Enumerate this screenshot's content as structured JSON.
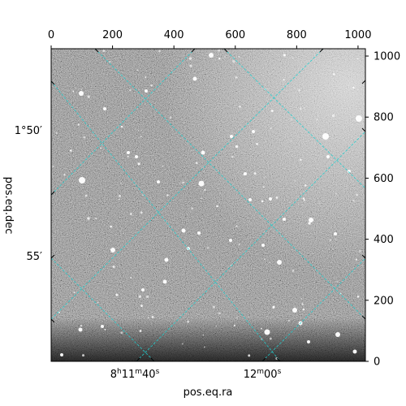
{
  "plot": {
    "xlabel": "pos.eq.ra",
    "ylabel": "pos.eq.dec",
    "top_ticks": [
      "0",
      "200",
      "400",
      "600",
      "800",
      "1000"
    ],
    "right_ticks": [
      "0",
      "200",
      "400",
      "600",
      "800",
      "1000"
    ],
    "ra_ticks": [
      {
        "h": "8",
        "m": "11",
        "s": "40"
      },
      {
        "m": "12",
        "s": "00"
      }
    ],
    "dec_ticks": [
      "1°50′",
      "55′"
    ],
    "grid_color": "#1fd0d0",
    "background": "#ffffff"
  },
  "chart_data": {
    "type": "image",
    "title": "",
    "xlabel": "pos.eq.ra",
    "ylabel": "pos.eq.dec",
    "pixel_axis_x": {
      "range": [
        0,
        1024
      ],
      "ticks": [
        0,
        200,
        400,
        600,
        800,
        1000
      ]
    },
    "pixel_axis_y": {
      "range": [
        0,
        1024
      ],
      "ticks": [
        0,
        200,
        400,
        600,
        800,
        1000
      ]
    },
    "world_ticks_ra": [
      "8h11m40s",
      "12m00s"
    ],
    "world_ticks_dec": [
      "1°50′",
      "55′"
    ],
    "coordinate_grid": true
  }
}
